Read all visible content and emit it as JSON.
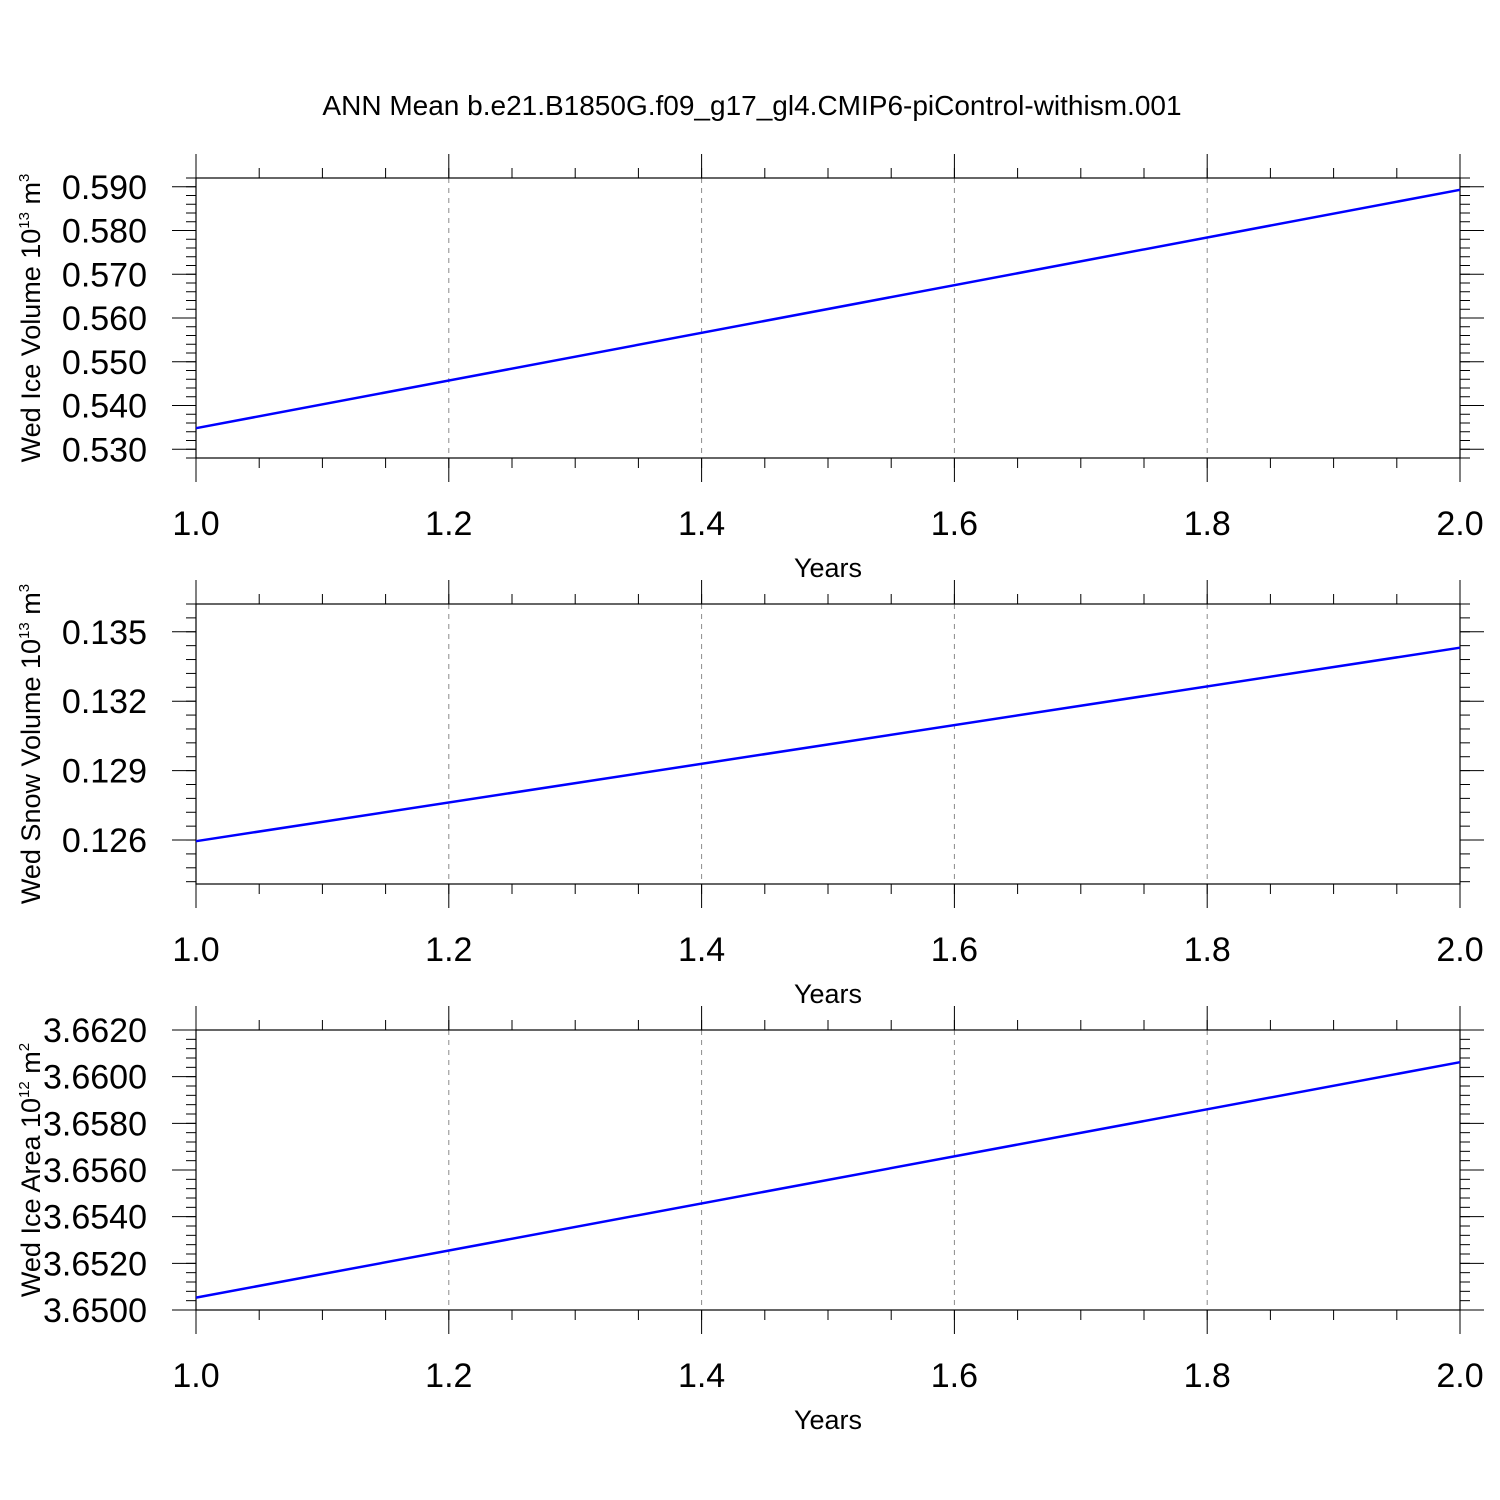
{
  "title": "ANN Mean b.e21.B1850G.f09_g17_gl4.CMIP6-piControl-withism.001",
  "chart_data": [
    {
      "type": "line",
      "title": "ANN Mean b.e21.B1850G.f09_g17_gl4.CMIP6-piControl-withism.001",
      "xlabel": "Years",
      "ylabel": "Wed Ice Volume 10",
      "ylabel_exp": "13",
      "ylabel_unit": "m",
      "ylabel_unit_exp": "3",
      "xlim": [
        1.0,
        2.0
      ],
      "ylim": [
        0.528,
        0.592
      ],
      "x_ticks": [
        "1.0",
        "1.2",
        "1.4",
        "1.6",
        "1.8",
        "2.0"
      ],
      "y_ticks": [
        "0.530",
        "0.540",
        "0.550",
        "0.560",
        "0.570",
        "0.580",
        "0.590"
      ],
      "grid": "vertical dashed",
      "series": [
        {
          "color": "#0000ff",
          "x": [
            1.0,
            2.0
          ],
          "y": [
            0.5348,
            0.5893
          ]
        }
      ]
    },
    {
      "type": "line",
      "xlabel": "Years",
      "ylabel": "Wed Snow Volume 10",
      "ylabel_exp": "13",
      "ylabel_unit": "m",
      "ylabel_unit_exp": "3",
      "xlim": [
        1.0,
        2.0
      ],
      "ylim": [
        0.1241,
        0.1362
      ],
      "x_ticks": [
        "1.0",
        "1.2",
        "1.4",
        "1.6",
        "1.8",
        "2.0"
      ],
      "y_ticks": [
        "0.126",
        "0.129",
        "0.132",
        "0.135"
      ],
      "grid": "vertical dashed",
      "series": [
        {
          "color": "#0000ff",
          "x": [
            1.0,
            2.0
          ],
          "y": [
            0.12595,
            0.13431
          ]
        }
      ]
    },
    {
      "type": "line",
      "xlabel": "Years",
      "ylabel": "Wed Ice Area 10",
      "ylabel_exp": "12",
      "ylabel_unit": "m",
      "ylabel_unit_exp": "2",
      "xlim": [
        1.0,
        2.0
      ],
      "ylim": [
        3.65,
        3.662
      ],
      "x_ticks": [
        "1.0",
        "1.2",
        "1.4",
        "1.6",
        "1.8",
        "2.0"
      ],
      "y_ticks": [
        "3.6500",
        "3.6520",
        "3.6540",
        "3.6560",
        "3.6580",
        "3.6600",
        "3.6620"
      ],
      "grid": "vertical dashed",
      "series": [
        {
          "color": "#0000ff",
          "x": [
            1.0,
            2.0
          ],
          "y": [
            3.65053,
            3.66062
          ]
        }
      ]
    }
  ]
}
